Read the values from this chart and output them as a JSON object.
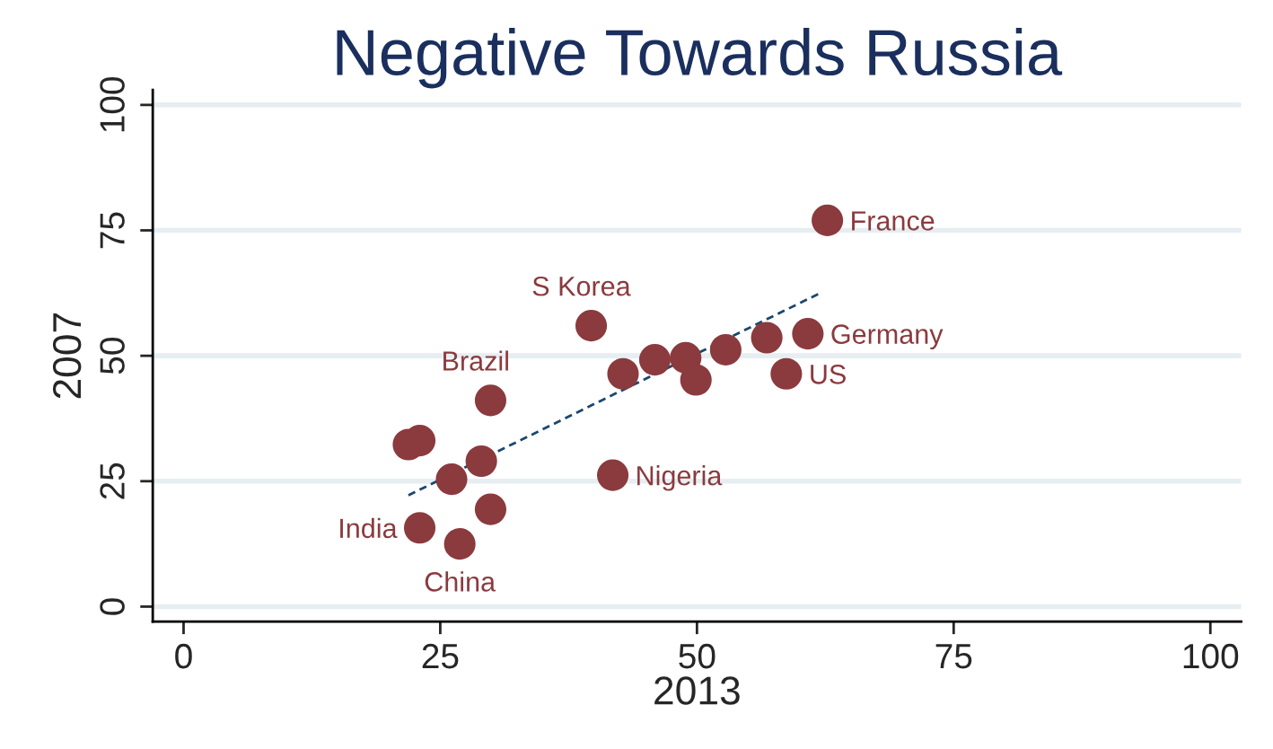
{
  "chart_data": {
    "type": "scatter",
    "title": "Negative Towards Russia",
    "xlabel": "2013",
    "ylabel": "2007",
    "xlim": [
      -3,
      103
    ],
    "ylim": [
      -3,
      103
    ],
    "xticks": [
      0,
      25,
      50,
      75,
      100
    ],
    "yticks": [
      0,
      25,
      50,
      75,
      100
    ],
    "grid": "y",
    "series": [
      {
        "marker": "circle",
        "color": "#8b3a3e",
        "x": [
          62.7,
          39.7,
          29.9,
          21.9,
          23.0,
          29.0,
          26.1,
          41.8,
          29.9,
          23.0,
          26.9,
          42.8,
          45.9,
          48.9,
          49.9,
          52.8,
          56.8,
          60.8,
          58.7
        ],
        "values": [
          77.0,
          56.0,
          41.1,
          32.3,
          33.1,
          29.0,
          25.4,
          26.2,
          19.4,
          15.7,
          12.5,
          46.4,
          49.2,
          49.6,
          45.2,
          51.2,
          53.6,
          54.4,
          46.4
        ]
      },
      {
        "type": "line",
        "color": "#1a476f",
        "line_style": "dashed",
        "x": [
          21.9,
          62.0
        ],
        "values": [
          22.2,
          62.5
        ]
      }
    ],
    "annotations": [
      {
        "text": "France",
        "x": 62.7,
        "y": 77.0
      },
      {
        "text": "S Korea",
        "x": 39.7,
        "y": 56.0
      },
      {
        "text": "Brazil",
        "x": 29.9,
        "y": 41.1
      },
      {
        "text": "Germany",
        "x": 60.8,
        "y": 54.4
      },
      {
        "text": "US",
        "x": 58.7,
        "y": 46.4
      },
      {
        "text": "Nigeria",
        "x": 41.8,
        "y": 26.2
      },
      {
        "text": "India",
        "x": 23.0,
        "y": 15.7
      },
      {
        "text": "China",
        "x": 26.9,
        "y": 12.5
      }
    ]
  }
}
